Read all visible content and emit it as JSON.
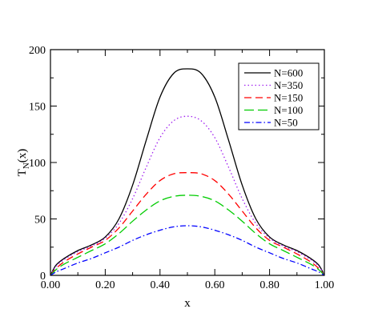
{
  "chart_data": {
    "type": "line",
    "title": "",
    "xlabel": "x",
    "ylabel_main": "T",
    "ylabel_sub": "N",
    "ylabel_tail": "(x)",
    "xlim": [
      0,
      1
    ],
    "ylim": [
      0,
      200
    ],
    "x_ticks": [
      0,
      0.2,
      0.4,
      0.6,
      0.8,
      1.0
    ],
    "x_tick_labels": [
      "0.00",
      "0.20",
      "0.40",
      "0.60",
      "0.80",
      "1.00"
    ],
    "y_ticks": [
      0,
      50,
      100,
      150,
      200
    ],
    "y_tick_labels": [
      "0",
      "50",
      "100",
      "150",
      "200"
    ],
    "grid": false,
    "legend_position": "top-right",
    "x": [
      0,
      0.02,
      0.05,
      0.1,
      0.15,
      0.2,
      0.25,
      0.3,
      0.35,
      0.4,
      0.45,
      0.5,
      0.55,
      0.6,
      0.65,
      0.7,
      0.75,
      0.8,
      0.85,
      0.9,
      0.95,
      0.98,
      1.0
    ],
    "series": [
      {
        "name": "N=600",
        "color": "#000000",
        "dash": "",
        "values": [
          0,
          9,
          15,
          22,
          27,
          34,
          50,
          80,
          120,
          158,
          179,
          183,
          179,
          158,
          120,
          80,
          50,
          34,
          27,
          22,
          15,
          9,
          0
        ]
      },
      {
        "name": "N=350",
        "color": "#a020f0",
        "dash": "1.5,3",
        "values": [
          0,
          8,
          14,
          21,
          26,
          33,
          46,
          68,
          96,
          122,
          137,
          141,
          137,
          122,
          96,
          68,
          46,
          33,
          26,
          21,
          14,
          8,
          0
        ]
      },
      {
        "name": "N=150",
        "color": "#ff0000",
        "dash": "9,5",
        "values": [
          0,
          6,
          12,
          19,
          25,
          31,
          42,
          57,
          72,
          84,
          90,
          91,
          90,
          84,
          72,
          57,
          42,
          31,
          25,
          19,
          12,
          6,
          0
        ]
      },
      {
        "name": "N=100",
        "color": "#00cc00",
        "dash": "12,5",
        "values": [
          0,
          5,
          10,
          16,
          22,
          28,
          37,
          48,
          58,
          66,
          70,
          71,
          70,
          66,
          58,
          48,
          37,
          28,
          22,
          16,
          10,
          5,
          0
        ]
      },
      {
        "name": "N=50",
        "color": "#0000ff",
        "dash": "7,3,1.5,3",
        "values": [
          0,
          3,
          6,
          11,
          15,
          20,
          25,
          31,
          36,
          40,
          43,
          44,
          43,
          40,
          36,
          31,
          25,
          20,
          15,
          11,
          6,
          3,
          0
        ]
      }
    ]
  }
}
